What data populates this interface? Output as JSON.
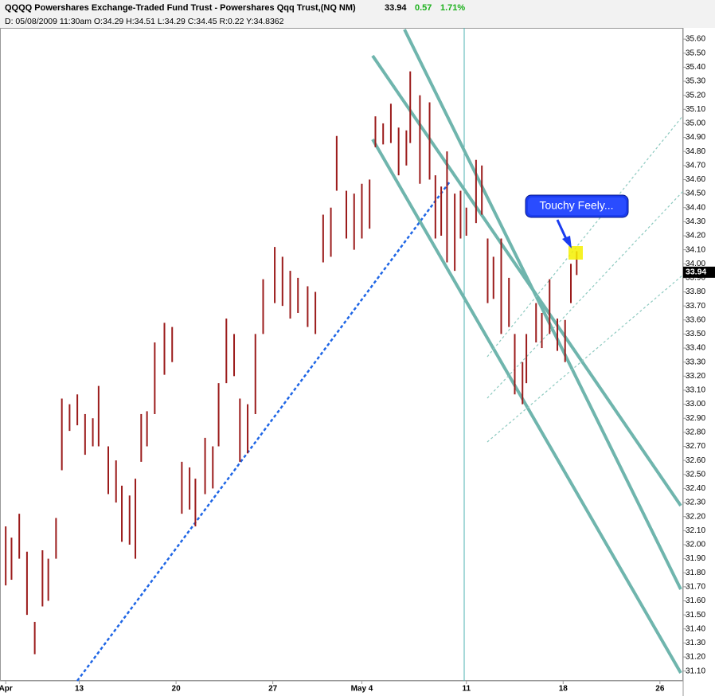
{
  "chart_data": {
    "type": "hl-bars",
    "title": "QQQQ Powershares Exchange-Traded Fund Trust - Powershares Qqq Trust,(NQ NM)",
    "last": 33.94,
    "change": "0.57",
    "change_pct": "1.71%",
    "subtitle": "D: 05/08/2009  11:30am O:34.29 H:34.51 L:34.29 C:34.45 R:0.22 Y:34.8362",
    "annotation": "Touchy Feely...",
    "color": "#9b1b1b",
    "x": [
      1.2,
      1.5,
      1.9,
      2.3,
      2.7,
      3.1,
      3.4,
      3.8,
      4.1,
      4.5,
      4.9,
      5.3,
      5.7,
      6.0,
      6.5,
      6.9,
      7.2,
      7.6,
      7.9,
      8.2,
      8.5,
      8.9,
      9.4,
      9.8,
      10.3,
      10.7,
      11.0,
      11.5,
      11.9,
      12.2,
      12.6,
      13.0,
      13.3,
      13.7,
      14.1,
      14.5,
      15.1,
      15.5,
      15.9,
      16.3,
      16.8,
      17.2,
      17.6,
      18.0,
      18.3,
      18.8,
      19.2,
      19.6,
      20.0,
      20.3,
      20.7,
      21.1,
      21.5,
      21.9,
      22.1,
      22.6,
      23.1,
      23.4,
      23.7,
      24.0,
      24.4,
      24.7,
      25.0,
      25.5,
      25.8,
      26.1,
      26.4,
      26.8,
      27.2,
      27.5,
      27.9,
      28.1,
      28.6,
      28.9,
      29.3,
      29.7,
      30.1,
      30.4,
      30.7
    ],
    "high": [
      32.13,
      32.05,
      32.22,
      31.95,
      31.45,
      31.96,
      31.9,
      32.19,
      33.04,
      33.0,
      33.07,
      32.93,
      32.9,
      33.13,
      32.7,
      32.6,
      32.42,
      32.35,
      32.47,
      32.93,
      32.95,
      33.44,
      33.58,
      33.55,
      32.59,
      32.55,
      32.47,
      32.76,
      32.7,
      33.15,
      33.61,
      33.5,
      33.04,
      33.0,
      33.5,
      33.89,
      34.12,
      34.05,
      33.95,
      33.9,
      33.84,
      33.8,
      34.35,
      34.4,
      34.91,
      34.52,
      34.5,
      34.57,
      34.6,
      35.05,
      35.0,
      35.14,
      34.97,
      34.95,
      35.37,
      35.2,
      35.15,
      34.63,
      34.55,
      34.8,
      34.5,
      34.52,
      34.4,
      34.74,
      34.7,
      34.18,
      34.05,
      34.18,
      33.9,
      33.5,
      33.3,
      33.5,
      33.72,
      33.65,
      33.89,
      33.61,
      33.6,
      34.0,
      34.09
    ],
    "low": [
      31.71,
      31.75,
      31.9,
      31.5,
      31.22,
      31.56,
      31.6,
      31.9,
      32.53,
      32.81,
      32.85,
      32.64,
      32.7,
      32.7,
      32.36,
      32.3,
      32.02,
      32.0,
      31.9,
      32.59,
      32.7,
      32.93,
      33.21,
      33.3,
      32.22,
      32.25,
      32.13,
      32.36,
      32.4,
      32.7,
      33.15,
      33.2,
      32.59,
      32.65,
      32.93,
      33.5,
      33.72,
      33.7,
      33.61,
      33.65,
      33.55,
      33.5,
      34.01,
      34.05,
      34.52,
      34.18,
      34.1,
      34.18,
      34.25,
      34.83,
      34.85,
      34.86,
      34.63,
      34.7,
      34.86,
      34.57,
      34.6,
      34.18,
      34.2,
      34.01,
      33.95,
      34.18,
      34.2,
      34.29,
      34.35,
      33.72,
      33.75,
      33.5,
      33.55,
      33.07,
      33.0,
      33.15,
      33.44,
      33.4,
      33.5,
      33.38,
      33.3,
      33.72,
      33.92
    ],
    "xlim": [
      0.905,
      36.2
    ],
    "xticks": [
      {
        "value": 1.2,
        "label": "Apr"
      },
      {
        "value": 5,
        "label": "13"
      },
      {
        "value": 10,
        "label": "20"
      },
      {
        "value": 15,
        "label": "27"
      },
      {
        "value": 19.6,
        "label": "May 4"
      },
      {
        "value": 25,
        "label": "11"
      },
      {
        "value": 30,
        "label": "18"
      },
      {
        "value": 35,
        "label": "26"
      }
    ],
    "ylim": [
      31.03,
      35.68
    ],
    "yticks": [
      {
        "value": 31.1,
        "label": "31.10"
      },
      {
        "value": 31.2,
        "label": "31.20"
      },
      {
        "value": 31.3,
        "label": "31.30"
      },
      {
        "value": 31.4,
        "label": "31.40"
      },
      {
        "value": 31.5,
        "label": "31.50"
      },
      {
        "value": 31.6,
        "label": "31.60"
      },
      {
        "value": 31.7,
        "label": "31.70"
      },
      {
        "value": 31.8,
        "label": "31.80"
      },
      {
        "value": 31.9,
        "label": "31.90"
      },
      {
        "value": 32,
        "label": "32.00"
      },
      {
        "value": 32.1,
        "label": "32.10"
      },
      {
        "value": 32.2,
        "label": "32.20"
      },
      {
        "value": 32.3,
        "label": "32.30"
      },
      {
        "value": 32.4,
        "label": "32.40"
      },
      {
        "value": 32.5,
        "label": "32.50"
      },
      {
        "value": 32.6,
        "label": "32.60"
      },
      {
        "value": 32.7,
        "label": "32.70"
      },
      {
        "value": 32.8,
        "label": "32.80"
      },
      {
        "value": 32.9,
        "label": "32.90"
      },
      {
        "value": 33,
        "label": "33.00"
      },
      {
        "value": 33.1,
        "label": "33.10"
      },
      {
        "value": 33.2,
        "label": "33.20"
      },
      {
        "value": 33.3,
        "label": "33.30"
      },
      {
        "value": 33.4,
        "label": "33.40"
      },
      {
        "value": 33.5,
        "label": "33.50"
      },
      {
        "value": 33.6,
        "label": "33.60"
      },
      {
        "value": 33.7,
        "label": "33.70"
      },
      {
        "value": 33.8,
        "label": "33.80"
      },
      {
        "value": 33.9,
        "label": "33.90"
      },
      {
        "value": 34,
        "label": "34.00"
      },
      {
        "value": 34.1,
        "label": "34.10"
      },
      {
        "value": 34.2,
        "label": "34.20"
      },
      {
        "value": 34.3,
        "label": "34.30"
      },
      {
        "value": 34.4,
        "label": "34.40"
      },
      {
        "value": 34.5,
        "label": "34.50"
      },
      {
        "value": 34.6,
        "label": "34.60"
      },
      {
        "value": 34.7,
        "label": "34.70"
      },
      {
        "value": 34.8,
        "label": "34.80"
      },
      {
        "value": 34.9,
        "label": "34.90"
      },
      {
        "value": 35,
        "label": "35.00"
      },
      {
        "value": 35.1,
        "label": "35.10"
      },
      {
        "value": 35.2,
        "label": "35.20"
      },
      {
        "value": 35.3,
        "label": "35.30"
      },
      {
        "value": 35.4,
        "label": "35.40"
      },
      {
        "value": 35.5,
        "label": "35.50"
      },
      {
        "value": 35.6,
        "label": "35.60"
      }
    ]
  }
}
